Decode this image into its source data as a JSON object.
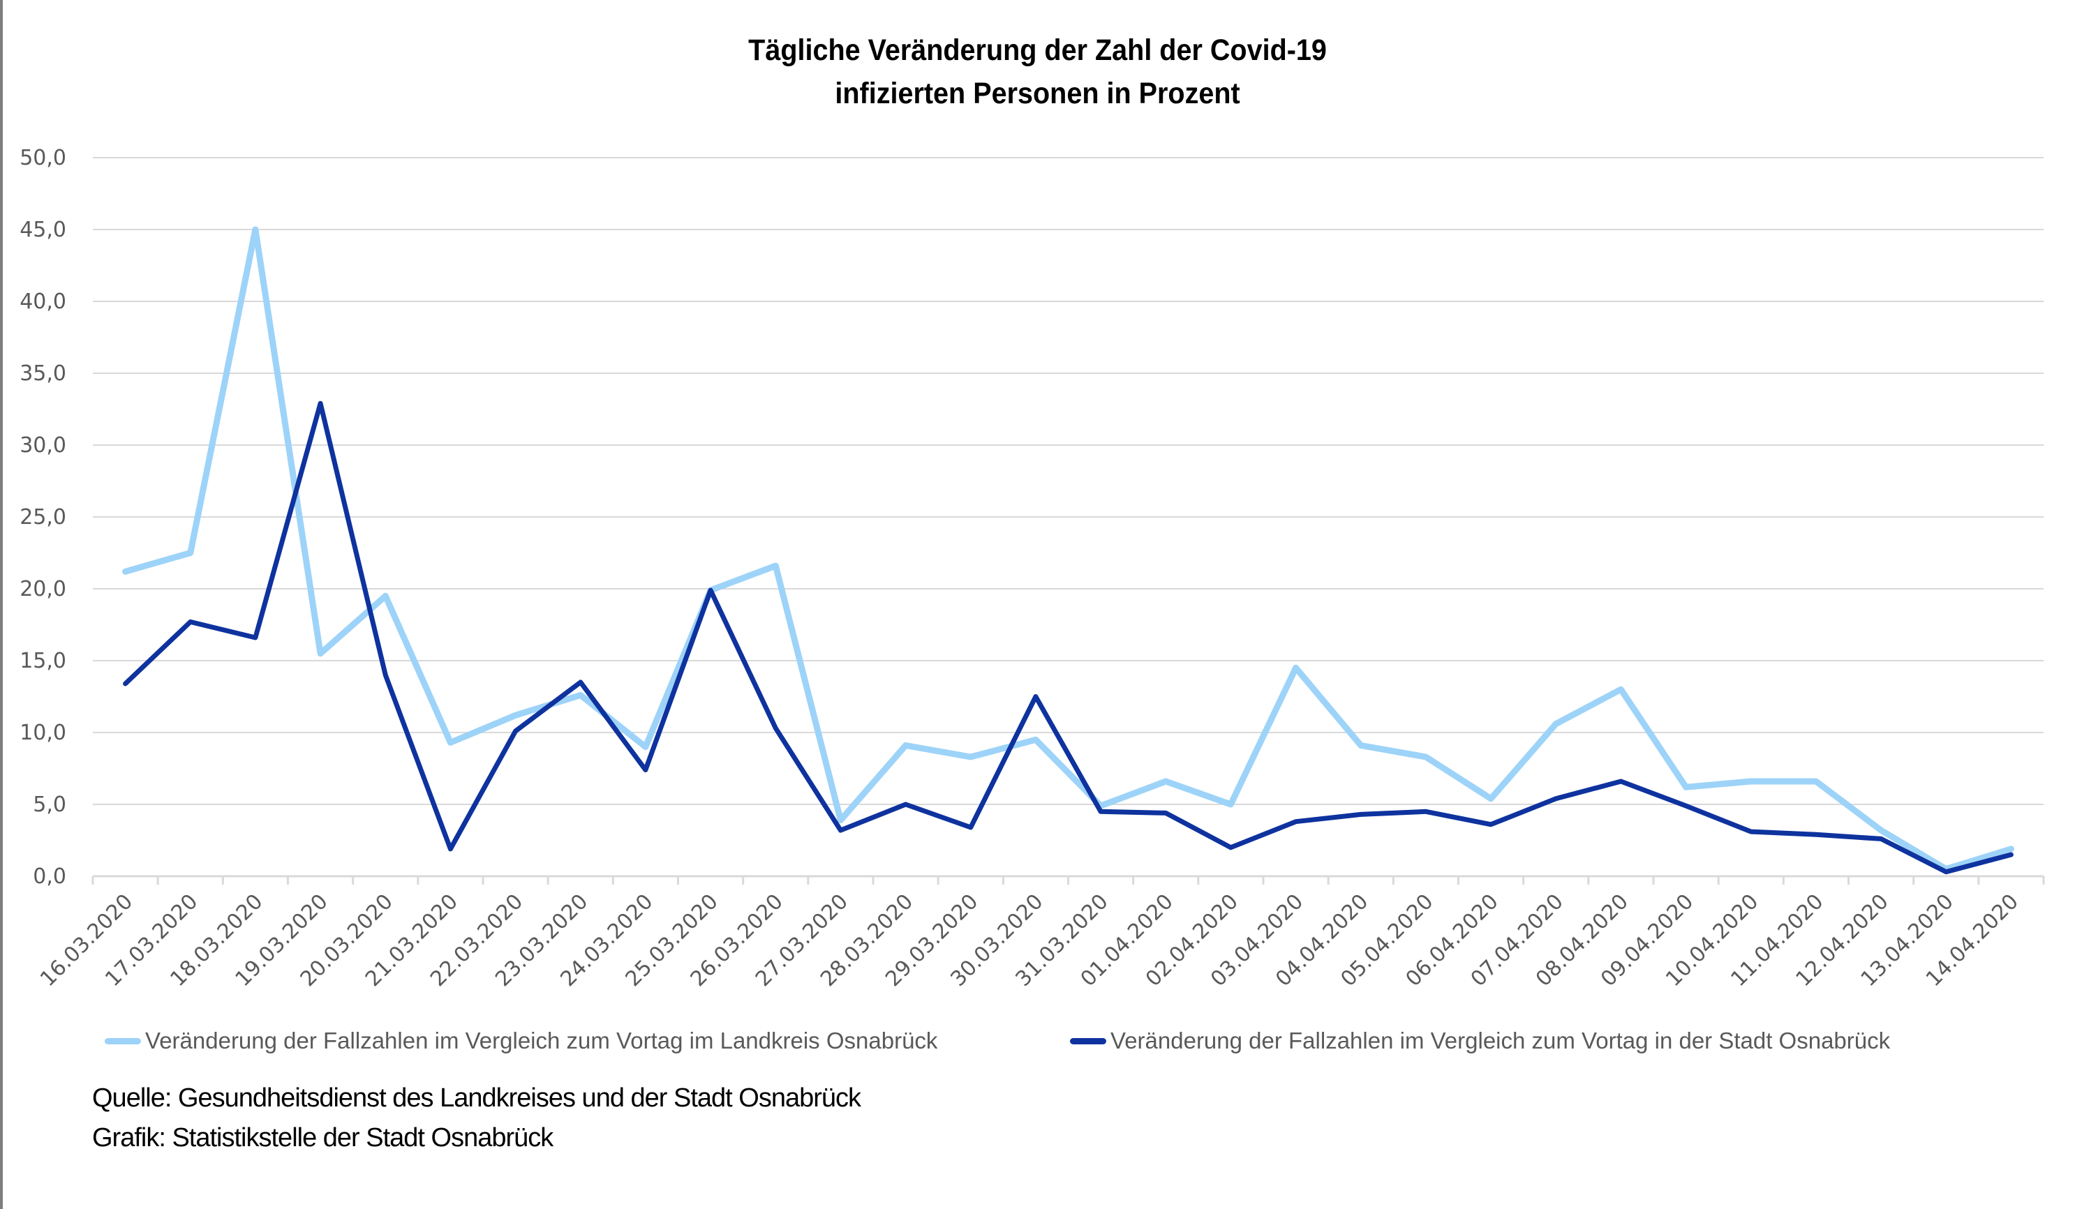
{
  "chart_data": {
    "type": "line",
    "title": "Tägliche Veränderung der Zahl der Covid-19 infizierten Personen in Prozent",
    "title_lines": [
      "Tägliche  Veränderung der Zahl der Covid-19",
      "infizierten Personen in Prozent"
    ],
    "xlabel": "",
    "ylabel": "",
    "ylim": [
      0,
      50
    ],
    "yticks": [
      0,
      5,
      10,
      15,
      20,
      25,
      30,
      35,
      40,
      45,
      50
    ],
    "ytick_labels": [
      "0,0",
      "5,0",
      "10,0",
      "15,0",
      "20,0",
      "25,0",
      "30,0",
      "35,0",
      "40,0",
      "45,0",
      "50,0"
    ],
    "grid": true,
    "legend_position": "bottom",
    "categories": [
      "16.03.2020",
      "17.03.2020",
      "18.03.2020",
      "19.03.2020",
      "20.03.2020",
      "21.03.2020",
      "22.03.2020",
      "23.03.2020",
      "24.03.2020",
      "25.03.2020",
      "26.03.2020",
      "27.03.2020",
      "28.03.2020",
      "29.03.2020",
      "30.03.2020",
      "31.03.2020",
      "01.04.2020",
      "02.04.2020",
      "03.04.2020",
      "04.04.2020",
      "05.04.2020",
      "06.04.2020",
      "07.04.2020",
      "08.04.2020",
      "09.04.2020",
      "10.04.2020",
      "11.04.2020",
      "12.04.2020",
      "13.04.2020",
      "14.04.2020"
    ],
    "series": [
      {
        "name": "Veränderung der Fallzahlen im Vergleich zum Vortag im Landkreis Osnabrück",
        "color": "#9dd3f8",
        "values": [
          21.2,
          22.5,
          45.0,
          15.5,
          19.5,
          9.3,
          11.2,
          12.6,
          9.0,
          19.9,
          21.6,
          3.9,
          9.1,
          8.3,
          9.5,
          4.9,
          6.6,
          5.0,
          14.5,
          9.1,
          8.3,
          5.4,
          10.6,
          13.0,
          6.2,
          6.6,
          6.6,
          3.2,
          0.5,
          1.9
        ]
      },
      {
        "name": "Veränderung der Fallzahlen im Vergleich zum Vortag in der Stadt Osnabrück",
        "color": "#0e329e",
        "values": [
          13.4,
          17.7,
          16.6,
          32.9,
          14.0,
          1.9,
          10.1,
          13.5,
          7.4,
          19.9,
          10.3,
          3.2,
          5.0,
          3.4,
          12.5,
          4.5,
          4.4,
          2.0,
          3.8,
          4.3,
          4.5,
          3.6,
          5.4,
          6.6,
          4.9,
          3.1,
          2.9,
          2.6,
          0.3,
          1.5
        ]
      }
    ]
  },
  "footer": {
    "source": "Quelle: Gesundheitsdienst des Landkreises und der Stadt Osnabrück",
    "credit": "Grafik: Statistikstelle der Stadt Osnabrück"
  }
}
